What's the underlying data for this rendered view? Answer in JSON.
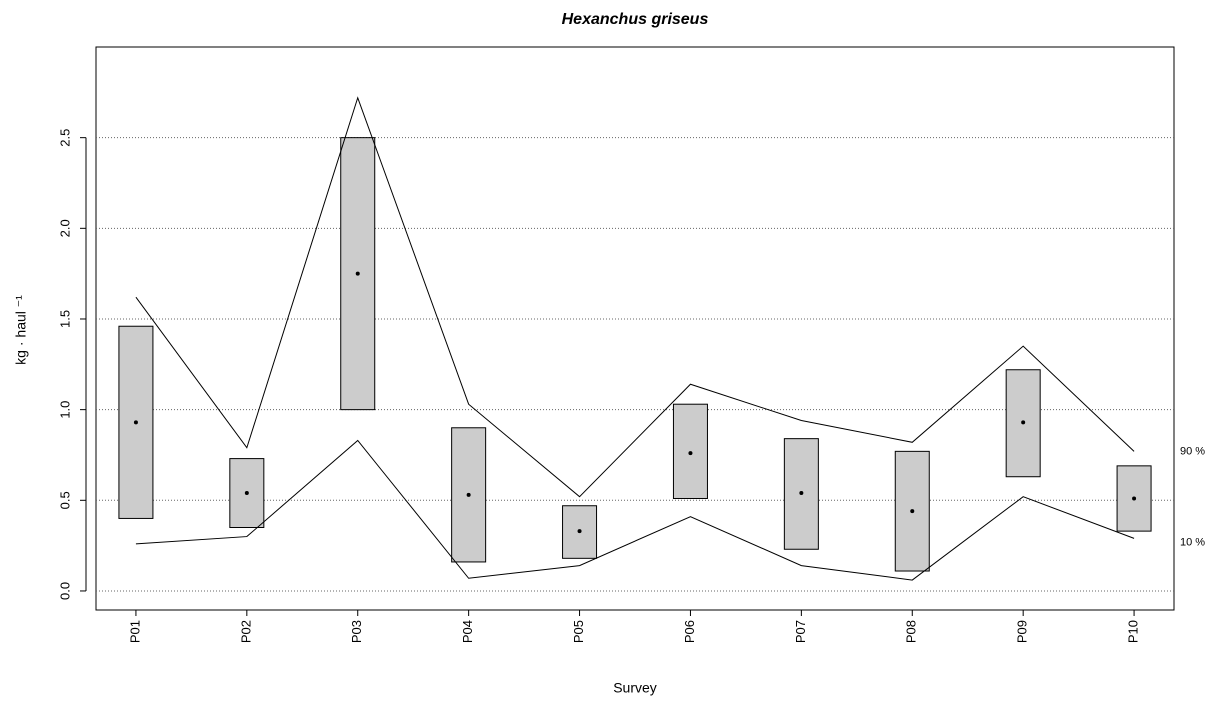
{
  "chart_data": {
    "type": "range",
    "title": "Hexanchus griseus",
    "x_label": "Survey",
    "y_label": "kg · haul ⁻¹",
    "categories": [
      "P01",
      "P02",
      "P03",
      "P04",
      "P05",
      "P06",
      "P07",
      "P08",
      "P09",
      "P10"
    ],
    "box_color": "#cccccc",
    "lower": [
      0.4,
      0.35,
      1.0,
      0.16,
      0.18,
      0.51,
      0.23,
      0.11,
      0.63,
      0.33
    ],
    "upper": [
      1.46,
      0.73,
      2.5,
      0.9,
      0.47,
      1.03,
      0.84,
      0.77,
      1.22,
      0.69
    ],
    "mean": [
      0.93,
      0.54,
      1.75,
      0.53,
      0.33,
      0.76,
      0.54,
      0.44,
      0.93,
      0.51
    ],
    "series": [
      {
        "name": "90 %",
        "color": "#000000",
        "values": [
          1.62,
          0.79,
          2.72,
          1.03,
          0.52,
          1.14,
          0.94,
          0.82,
          1.35,
          0.77
        ]
      },
      {
        "name": "10 %",
        "color": "#000000",
        "values": [
          0.26,
          0.3,
          0.83,
          0.07,
          0.14,
          0.41,
          0.14,
          0.06,
          0.52,
          0.29
        ]
      }
    ],
    "ylim": [
      -0.105,
      3.0
    ],
    "yticks": [
      {
        "value": 0,
        "label": "0.0"
      },
      0.5,
      {
        "value": 1,
        "label": "1.0"
      },
      1.5,
      {
        "value": 2,
        "label": "2.0"
      },
      2.5
    ],
    "grid": true
  }
}
